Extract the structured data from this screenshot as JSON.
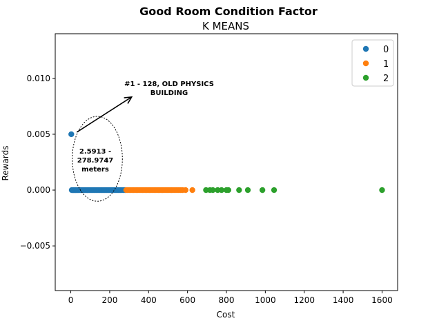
{
  "chart_data": {
    "type": "scatter",
    "title": "Good Room Condition Factor",
    "subtitle": "K MEANS",
    "xlabel": "Cost",
    "ylabel": "Rewards",
    "xlim": [
      -80,
      1680
    ],
    "ylim": [
      -0.009,
      0.014
    ],
    "x_ticks": [
      0,
      200,
      400,
      600,
      800,
      1000,
      1200,
      1400,
      1600
    ],
    "x_tick_labels": [
      "0",
      "200",
      "400",
      "600",
      "800",
      "1000",
      "1200",
      "1400",
      "1600"
    ],
    "y_ticks": [
      -0.005,
      0.0,
      0.005,
      0.01
    ],
    "y_tick_labels": [
      "−0.005",
      "0.000",
      "0.005",
      "0.010"
    ],
    "grid": false,
    "legend_position": "top-right",
    "series": [
      {
        "name": "0",
        "color": "#1f77b4",
        "points": [
          [
            2.59,
            0.005
          ],
          [
            5,
            0
          ],
          [
            8,
            0
          ],
          [
            12,
            0
          ],
          [
            15,
            0
          ],
          [
            18,
            0
          ],
          [
            22,
            0
          ],
          [
            25,
            0
          ],
          [
            28,
            0
          ],
          [
            32,
            0
          ],
          [
            36,
            0
          ],
          [
            40,
            0
          ],
          [
            45,
            0
          ],
          [
            50,
            0
          ],
          [
            55,
            0
          ],
          [
            60,
            0
          ],
          [
            65,
            0
          ],
          [
            70,
            0
          ],
          [
            75,
            0
          ],
          [
            80,
            0
          ],
          [
            85,
            0
          ],
          [
            90,
            0
          ],
          [
            95,
            0
          ],
          [
            100,
            0
          ],
          [
            105,
            0
          ],
          [
            110,
            0
          ],
          [
            115,
            0
          ],
          [
            120,
            0
          ],
          [
            125,
            0
          ],
          [
            130,
            0
          ],
          [
            135,
            0
          ],
          [
            140,
            0
          ],
          [
            145,
            0
          ],
          [
            150,
            0
          ],
          [
            155,
            0
          ],
          [
            160,
            0
          ],
          [
            165,
            0
          ],
          [
            170,
            0
          ],
          [
            175,
            0
          ],
          [
            180,
            0
          ],
          [
            185,
            0
          ],
          [
            190,
            0
          ],
          [
            195,
            0
          ],
          [
            200,
            0
          ],
          [
            205,
            0
          ],
          [
            210,
            0
          ],
          [
            215,
            0
          ],
          [
            220,
            0
          ],
          [
            225,
            0
          ],
          [
            230,
            0
          ],
          [
            235,
            0
          ],
          [
            240,
            0
          ],
          [
            245,
            0
          ],
          [
            250,
            0
          ],
          [
            255,
            0
          ],
          [
            262,
            0
          ],
          [
            270,
            0
          ],
          [
            278.97,
            0
          ]
        ]
      },
      {
        "name": "1",
        "color": "#ff7f0e",
        "points": [
          [
            285,
            0
          ],
          [
            292,
            0
          ],
          [
            300,
            0
          ],
          [
            308,
            0
          ],
          [
            315,
            0
          ],
          [
            322,
            0
          ],
          [
            330,
            0
          ],
          [
            338,
            0
          ],
          [
            345,
            0
          ],
          [
            352,
            0
          ],
          [
            360,
            0
          ],
          [
            368,
            0
          ],
          [
            375,
            0
          ],
          [
            382,
            0
          ],
          [
            390,
            0
          ],
          [
            398,
            0
          ],
          [
            405,
            0
          ],
          [
            412,
            0
          ],
          [
            420,
            0
          ],
          [
            428,
            0
          ],
          [
            435,
            0
          ],
          [
            442,
            0
          ],
          [
            450,
            0
          ],
          [
            458,
            0
          ],
          [
            465,
            0
          ],
          [
            472,
            0
          ],
          [
            480,
            0
          ],
          [
            488,
            0
          ],
          [
            495,
            0
          ],
          [
            502,
            0
          ],
          [
            510,
            0
          ],
          [
            518,
            0
          ],
          [
            525,
            0
          ],
          [
            535,
            0
          ],
          [
            545,
            0
          ],
          [
            555,
            0
          ],
          [
            565,
            0
          ],
          [
            575,
            0
          ],
          [
            590,
            0
          ],
          [
            625,
            0
          ]
        ]
      },
      {
        "name": "2",
        "color": "#2ca02c",
        "points": [
          [
            695,
            0
          ],
          [
            715,
            0
          ],
          [
            730,
            0
          ],
          [
            755,
            0
          ],
          [
            775,
            0
          ],
          [
            800,
            0
          ],
          [
            810,
            0
          ],
          [
            865,
            0
          ],
          [
            910,
            0
          ],
          [
            985,
            0
          ],
          [
            1045,
            0
          ],
          [
            1600,
            0
          ]
        ]
      }
    ],
    "annotations": [
      {
        "text_lines": [
          "#1 - 128, OLD PHYSICS",
          "BUILDING"
        ],
        "arrow_from": [
          2.59,
          0.005
        ],
        "arrow_to": [
          320,
          0.0084
        ]
      },
      {
        "text_lines": [
          "2.5913 -",
          "278.9747",
          "meters"
        ],
        "ellipse_center": [
          140,
          0.0028
        ],
        "ellipse_radius": [
          140,
          0.0038
        ]
      }
    ]
  }
}
